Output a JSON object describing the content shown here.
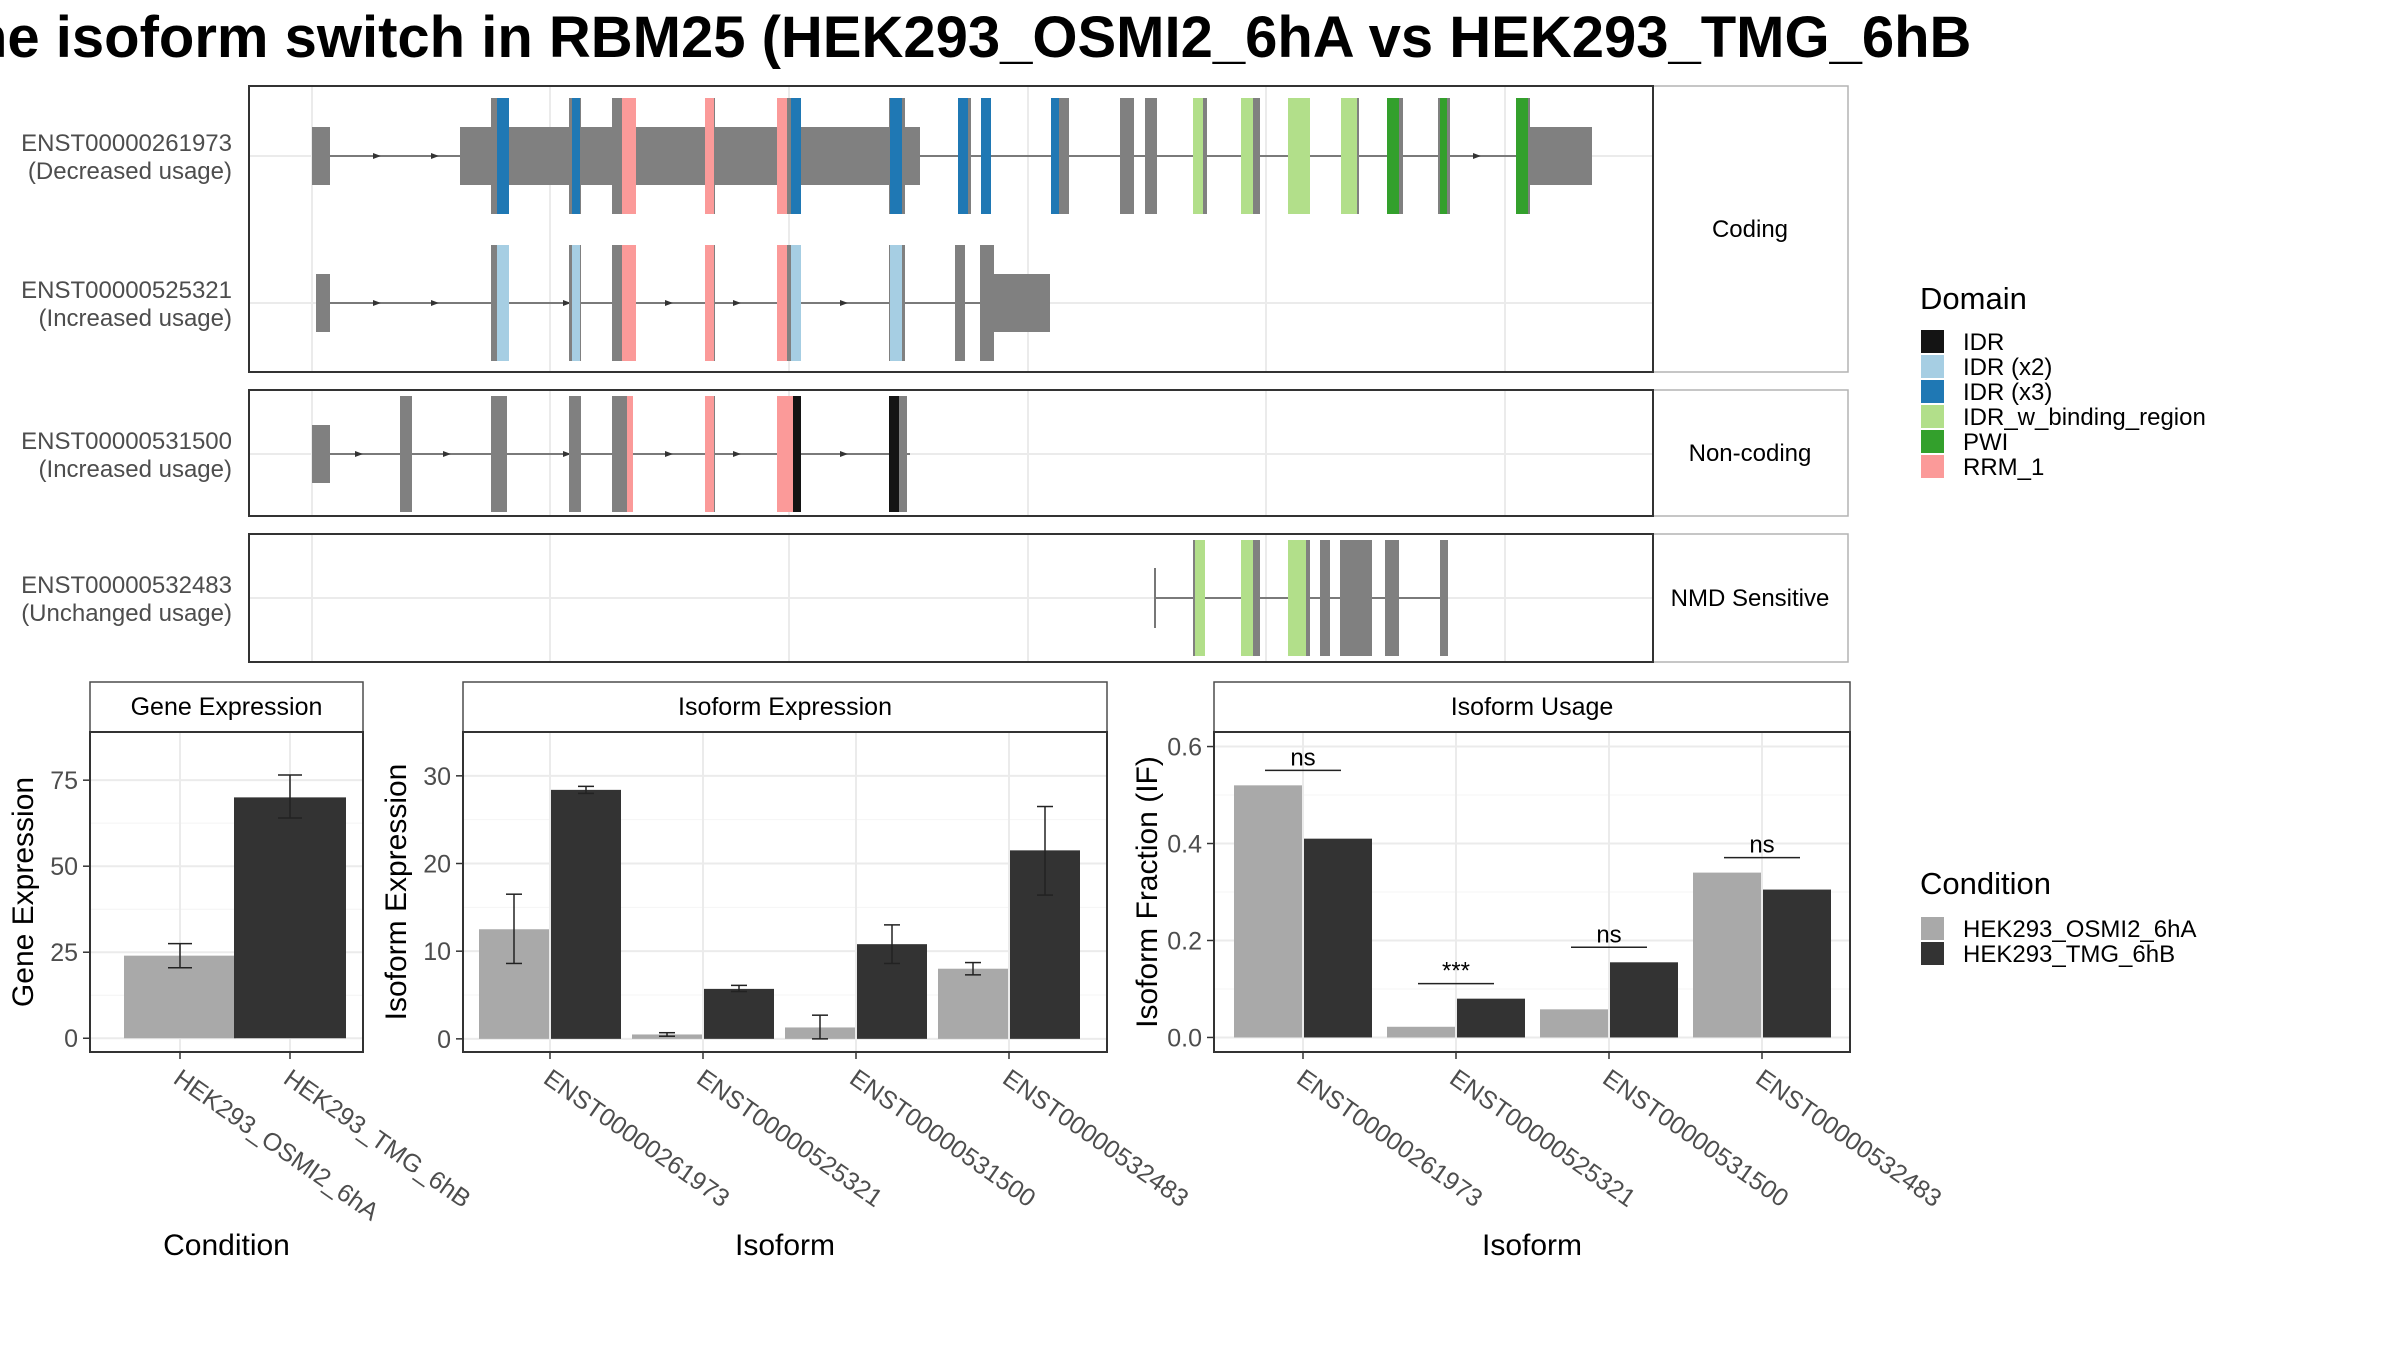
{
  "title": "he isoform switch in RBM25 (HEK293_OSMI2_6hA vs HEK293_TMG_6hB",
  "colors": {
    "IDR": "#141414",
    "IDR (x2)": "#a6cee3",
    "IDR (x3)": "#1f78b4",
    "IDR_w_binding_region": "#b2df8a",
    "PWI": "#33a02c",
    "RRM_1": "#fb9a99",
    "exon": "#808080",
    "cond_a": "#a9a9a9",
    "cond_b": "#333333"
  },
  "transcripts": [
    {
      "id": "ENST00000261973",
      "usage": "(Decreased usage)"
    },
    {
      "id": "ENST00000525321",
      "usage": "(Increased usage)"
    },
    {
      "id": "ENST00000531500",
      "usage": "(Increased usage)"
    },
    {
      "id": "ENST00000532483",
      "usage": "(Unchanged usage)"
    }
  ],
  "strips": [
    "Coding",
    "Non-coding",
    "NMD Sensitive"
  ],
  "legends": {
    "domain_title": "Domain",
    "domain_items": [
      "IDR",
      "IDR (x2)",
      "IDR (x3)",
      "IDR_w_binding_region",
      "PWI",
      "RRM_1"
    ],
    "condition_title": "Condition",
    "condition_items": [
      "HEK293_OSMI2_6hA",
      "HEK293_TMG_6hB"
    ]
  },
  "chart_data": [
    {
      "type": "bar",
      "title": "Gene Expression",
      "xlabel": "Condition",
      "ylabel": "Gene Expression",
      "categories": [
        "HEK293_OSMI2_6hA",
        "HEK293_TMG_6hB"
      ],
      "values": [
        24,
        70
      ],
      "error_low": [
        20.5,
        64
      ],
      "error_high": [
        27.5,
        76.5
      ],
      "yticks": [
        0,
        25,
        50,
        75
      ],
      "ylim": [
        -4,
        89
      ]
    },
    {
      "type": "bar",
      "title": "Isoform Expression",
      "xlabel": "Isoform",
      "ylabel": "Isoform Expression",
      "categories": [
        "ENST00000261973",
        "ENST00000525321",
        "ENST00000531500",
        "ENST00000532483"
      ],
      "series": [
        {
          "name": "HEK293_OSMI2_6hA",
          "values": [
            12.5,
            0.5,
            1.3,
            8
          ],
          "error_low": [
            8.6,
            0.3,
            0,
            7.3
          ],
          "error_high": [
            16.5,
            0.7,
            2.7,
            8.7
          ]
        },
        {
          "name": "HEK293_TMG_6hB",
          "values": [
            28.4,
            5.7,
            10.8,
            21.5
          ],
          "error_low": [
            28,
            5.4,
            8.6,
            16.4
          ],
          "error_high": [
            28.8,
            6.1,
            13,
            26.5
          ]
        }
      ],
      "yticks": [
        0,
        10,
        20,
        30
      ],
      "ylim": [
        -1.5,
        35
      ]
    },
    {
      "type": "bar",
      "title": "Isoform Usage",
      "xlabel": "Isoform",
      "ylabel": "Isoform Fraction (IF)",
      "categories": [
        "ENST00000261973",
        "ENST00000525321",
        "ENST00000531500",
        "ENST00000532483"
      ],
      "series": [
        {
          "name": "HEK293_OSMI2_6hA",
          "values": [
            0.52,
            0.022,
            0.058,
            0.34
          ]
        },
        {
          "name": "HEK293_TMG_6hB",
          "values": [
            0.41,
            0.08,
            0.155,
            0.305
          ]
        }
      ],
      "significance": [
        "ns",
        "***",
        "ns",
        "ns"
      ],
      "yticks": [
        "0.0",
        "0.2",
        "0.4",
        "0.6"
      ],
      "ylim": [
        -0.03,
        0.63
      ]
    }
  ]
}
